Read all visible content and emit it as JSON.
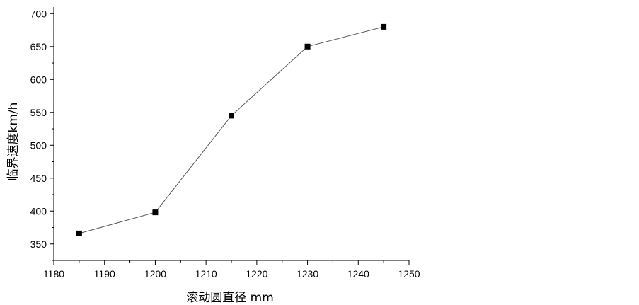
{
  "chart_data": {
    "type": "line",
    "title": "",
    "xlabel": "滚动圆直径 mm",
    "ylabel": "临界速度km/h",
    "xlim": [
      1180,
      1250
    ],
    "ylim": [
      325,
      710
    ],
    "x_ticks_major": [
      1180,
      1190,
      1200,
      1210,
      1220,
      1230,
      1240,
      1250
    ],
    "y_ticks_major": [
      350,
      400,
      450,
      500,
      550,
      600,
      650,
      700
    ],
    "grid": false,
    "legend": "none",
    "marker": "square",
    "colors": {
      "line": "#555555",
      "marker": "#000000",
      "axis": "#000000"
    },
    "series": [
      {
        "x": [
          1185,
          1200,
          1215,
          1230,
          1245
        ],
        "values": [
          366,
          398,
          545,
          650,
          680
        ]
      }
    ]
  }
}
